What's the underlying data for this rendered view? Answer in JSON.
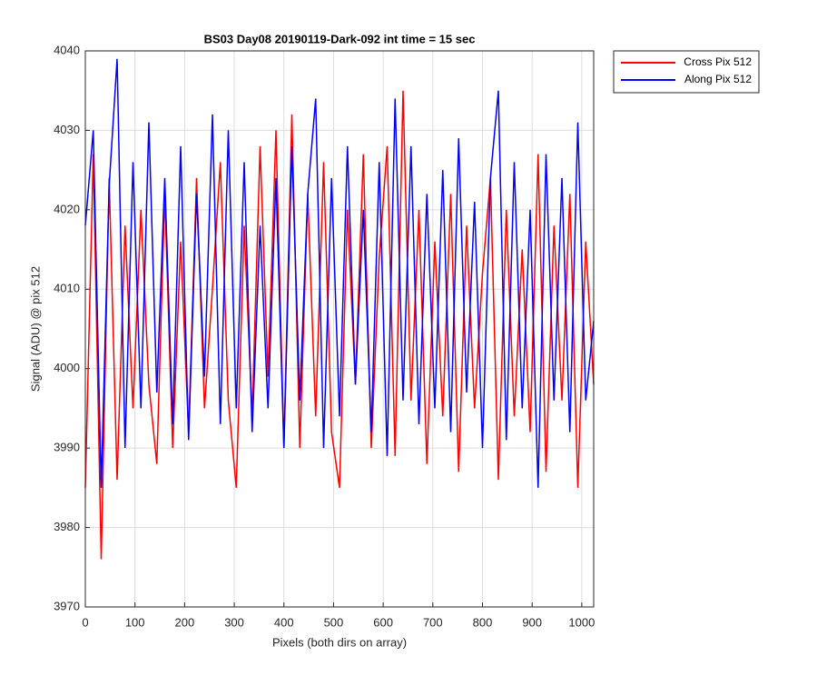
{
  "chart_data": {
    "type": "line",
    "title": "BS03 Day08 20190119-Dark-092 int time = 15 sec",
    "x_label": "Pixels (both dirs on array)",
    "y_label": "Signal (ADU) @ pix 512",
    "x": [
      0,
      16,
      32,
      48,
      64,
      80,
      96,
      112,
      128,
      144,
      160,
      176,
      192,
      208,
      224,
      240,
      256,
      272,
      288,
      304,
      320,
      336,
      352,
      368,
      384,
      400,
      416,
      432,
      448,
      464,
      480,
      496,
      512,
      528,
      544,
      560,
      576,
      592,
      608,
      624,
      640,
      656,
      672,
      688,
      704,
      720,
      736,
      752,
      768,
      784,
      800,
      816,
      832,
      848,
      864,
      880,
      896,
      912,
      928,
      944,
      960,
      976,
      992,
      1008,
      1024
    ],
    "series": [
      {
        "name": "Cross Pix 512",
        "color": "#ff0000",
        "values": [
          3985,
          4027,
          3976,
          4024,
          3986,
          4018,
          3995,
          4020,
          3998,
          3988,
          4022,
          3990,
          4016,
          3992,
          4024,
          3995,
          4010,
          4026,
          3996,
          3985,
          4018,
          3994,
          4028,
          3999,
          4030,
          3990,
          4032,
          3990,
          4022,
          3994,
          4026,
          3992,
          3985,
          4020,
          3998,
          4027,
          3990,
          4014,
          4028,
          3989,
          4035,
          3996,
          4020,
          3988,
          4016,
          3994,
          4022,
          3987,
          4018,
          3995,
          4012,
          4024,
          3986,
          4020,
          3994,
          4015,
          3992,
          4027,
          3987,
          4018,
          3996,
          4022,
          3985,
          4016,
          3998
        ]
      },
      {
        "name": "Along Pix 512",
        "color": "#0000ff",
        "values": [
          4018,
          4030,
          3985,
          4023,
          4039,
          3990,
          4026,
          3995,
          4031,
          3997,
          4024,
          3993,
          4028,
          3991,
          4022,
          3999,
          4032,
          3993,
          4030,
          3995,
          4026,
          3992,
          4018,
          3995,
          4024,
          3990,
          4028,
          3996,
          4022,
          4034,
          3990,
          4024,
          3994,
          4028,
          3998,
          4020,
          3992,
          4026,
          3989,
          4034,
          3996,
          4028,
          3993,
          4022,
          3995,
          4025,
          3992,
          4029,
          3997,
          4021,
          3990,
          4024,
          4035,
          3991,
          4026,
          3995,
          4020,
          3985,
          4027,
          3996,
          4024,
          3992,
          4031,
          3996,
          4006
        ]
      }
    ],
    "xlim": [
      0,
      1024
    ],
    "ylim": [
      3970,
      4040
    ],
    "xticks": [
      0,
      100,
      200,
      300,
      400,
      500,
      600,
      700,
      800,
      900,
      1000
    ],
    "yticks": [
      3970,
      3980,
      3990,
      4000,
      4010,
      4020,
      4030,
      4040
    ],
    "grid": true,
    "legend": "northeastoutside"
  }
}
